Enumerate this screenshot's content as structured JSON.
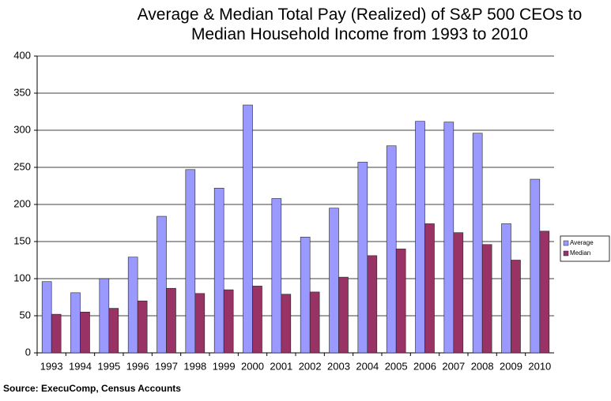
{
  "chart_data": {
    "type": "bar",
    "title": "Average & Median Total Pay (Realized) of S&P 500 CEOs to Median Household Income from 1993 to 2010",
    "source": "Source:  ExecuComp, Census Accounts",
    "categories": [
      "1993",
      "1994",
      "1995",
      "1996",
      "1997",
      "1998",
      "1999",
      "2000",
      "2001",
      "2002",
      "2003",
      "2004",
      "2005",
      "2006",
      "2007",
      "2008",
      "2009",
      "2010"
    ],
    "series": [
      {
        "name": "Average",
        "color": "#9999ff",
        "values": [
          96,
          81,
          100,
          129,
          184,
          247,
          222,
          334,
          208,
          156,
          195,
          257,
          279,
          312,
          311,
          296,
          174,
          234
        ]
      },
      {
        "name": "Median",
        "color": "#993366",
        "values": [
          52,
          55,
          60,
          70,
          87,
          80,
          85,
          90,
          79,
          82,
          102,
          131,
          140,
          174,
          162,
          146,
          125,
          164
        ]
      }
    ],
    "ylim": [
      0,
      400
    ],
    "yticks": [
      0,
      50,
      100,
      150,
      200,
      250,
      300,
      350,
      400
    ],
    "grid": true,
    "legend": "right"
  }
}
